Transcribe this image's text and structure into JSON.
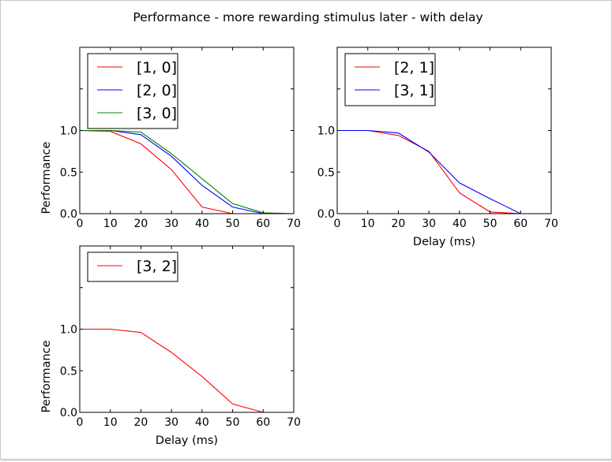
{
  "figure": {
    "suptitle": "Performance - more rewarding stimulus later - with delay"
  },
  "chart_data": [
    {
      "type": "line",
      "title": "",
      "xlabel": "",
      "ylabel": "Performance",
      "xlim": [
        0,
        70
      ],
      "ylim": [
        0,
        2.0
      ],
      "xticks": [
        "0",
        "10",
        "20",
        "30",
        "40",
        "50",
        "60",
        "70"
      ],
      "yticks": [
        "0.0",
        "0.5",
        "1.0"
      ],
      "legend_position": "upper-left",
      "x": [
        0,
        10,
        20,
        30,
        40,
        50,
        60,
        70
      ],
      "series": [
        {
          "name": "[1, 0]",
          "color": "#ff0000",
          "values": [
            1.0,
            0.99,
            0.84,
            0.53,
            0.08,
            0.0,
            0.0,
            0.0
          ]
        },
        {
          "name": "[2, 0]",
          "color": "#0000ff",
          "values": [
            1.0,
            1.0,
            0.95,
            0.69,
            0.34,
            0.08,
            0.0,
            0.0
          ]
        },
        {
          "name": "[3, 0]",
          "color": "#008000",
          "values": [
            1.0,
            1.0,
            0.98,
            0.72,
            0.42,
            0.12,
            0.01,
            0.0
          ]
        }
      ]
    },
    {
      "type": "line",
      "title": "",
      "xlabel": "Delay (ms)",
      "ylabel": "",
      "xlim": [
        0,
        70
      ],
      "ylim": [
        0,
        2.0
      ],
      "xticks": [
        "0",
        "10",
        "20",
        "30",
        "40",
        "50",
        "60",
        "70"
      ],
      "yticks": [
        "0.0",
        "0.5",
        "1.0"
      ],
      "legend_position": "upper-left",
      "x": [
        0,
        10,
        20,
        30,
        40,
        50,
        60,
        70
      ],
      "series": [
        {
          "name": "[2, 1]",
          "color": "#ff0000",
          "values": [
            1.0,
            1.0,
            0.94,
            0.75,
            0.25,
            0.02,
            0.0,
            0.0
          ]
        },
        {
          "name": "[3, 1]",
          "color": "#0000ff",
          "values": [
            1.0,
            1.0,
            0.97,
            0.74,
            0.37,
            0.18,
            0.0,
            0.0
          ]
        }
      ]
    },
    {
      "type": "line",
      "title": "",
      "xlabel": "Delay (ms)",
      "ylabel": "Performance",
      "xlim": [
        0,
        70
      ],
      "ylim": [
        0,
        2.0
      ],
      "xticks": [
        "0",
        "10",
        "20",
        "30",
        "40",
        "50",
        "60",
        "70"
      ],
      "yticks": [
        "0.0",
        "0.5",
        "1.0"
      ],
      "legend_position": "upper-left",
      "x": [
        0,
        10,
        20,
        30,
        40,
        50,
        60,
        70
      ],
      "series": [
        {
          "name": "[3, 2]",
          "color": "#ff0000",
          "values": [
            1.0,
            1.0,
            0.96,
            0.72,
            0.43,
            0.1,
            0.0,
            0.0
          ]
        }
      ]
    }
  ]
}
